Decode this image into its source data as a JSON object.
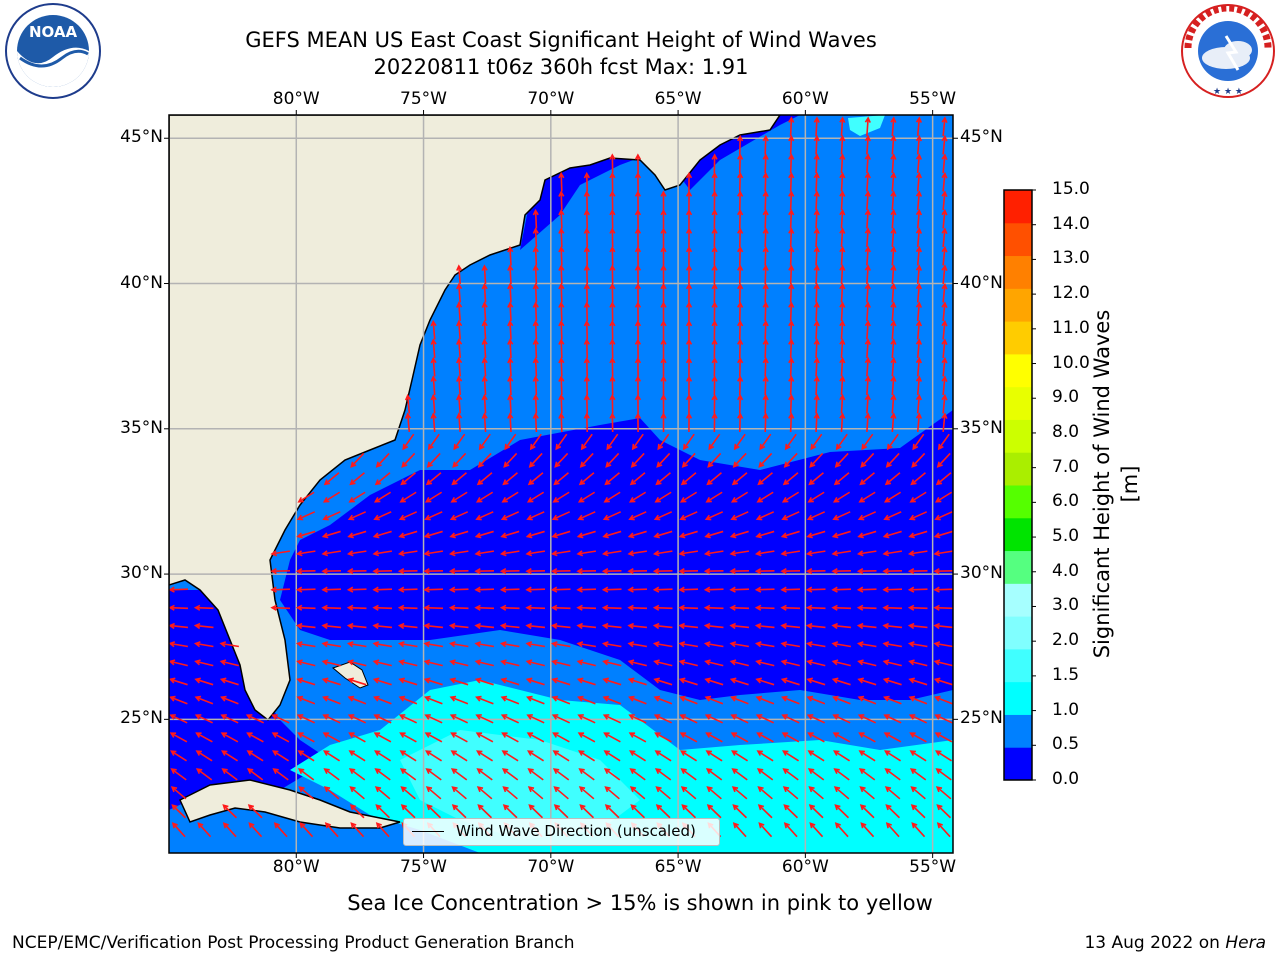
{
  "title": {
    "line1": "GEFS MEAN US East Coast Significant Height of Wind Waves",
    "line2": "20220811 t06z 360h fcst   Max: 1.91"
  },
  "map": {
    "lon_labels": [
      "80°W",
      "75°W",
      "70°W",
      "65°W",
      "60°W",
      "55°W"
    ],
    "lon_values": [
      -80,
      -75,
      -70,
      -65,
      -60,
      -55
    ],
    "lat_labels": [
      "45°N",
      "40°N",
      "35°N",
      "30°N",
      "25°N"
    ],
    "lat_values": [
      45,
      40,
      35,
      30,
      25
    ],
    "lon_range": [
      -85,
      -54.2
    ],
    "lat_range": [
      20.4,
      45.8
    ],
    "legend_label": "Wind Wave Direction (unscaled)",
    "colors": {
      "land": "#efeddc",
      "grid": "#b3b3b3",
      "arrow": "#ff1a1a"
    }
  },
  "colorbar": {
    "title": "Significant Height of Wind Waves [m]",
    "tick_labels": [
      "0.0",
      "0.5",
      "1.0",
      "1.5",
      "2.0",
      "3.0",
      "4.0",
      "5.0",
      "6.0",
      "7.0",
      "8.0",
      "9.0",
      "10.0",
      "11.0",
      "12.0",
      "13.0",
      "14.0",
      "15.0"
    ],
    "bin_colors": [
      "#0000ff",
      "#0080ff",
      "#00ffff",
      "#40ffff",
      "#80ffff",
      "#a6ffff",
      "#55ff80",
      "#00e400",
      "#55ff00",
      "#aaee00",
      "#ccff00",
      "#e8ff00",
      "#ffff00",
      "#ffcc00",
      "#ffa500",
      "#ff8000",
      "#ff5000",
      "#ff2000"
    ]
  },
  "sea_ice_note": "Sea Ice Concentration > 15% is shown in pink to yellow",
  "footer": {
    "left": "NCEP/EMC/Verification Post Processing Product Generation Branch",
    "right_prefix": "13 Aug 2022 on ",
    "right_host": "Hera"
  },
  "logos": {
    "noaa": "NOAA",
    "noaa_ring": "NATIONAL OCEANIC AND ATMOSPHERIC ADMINISTRATION · U.S. DEPARTMENT OF COMMERCE",
    "nws_ring": "NATIONAL WEATHER SERVICE"
  }
}
